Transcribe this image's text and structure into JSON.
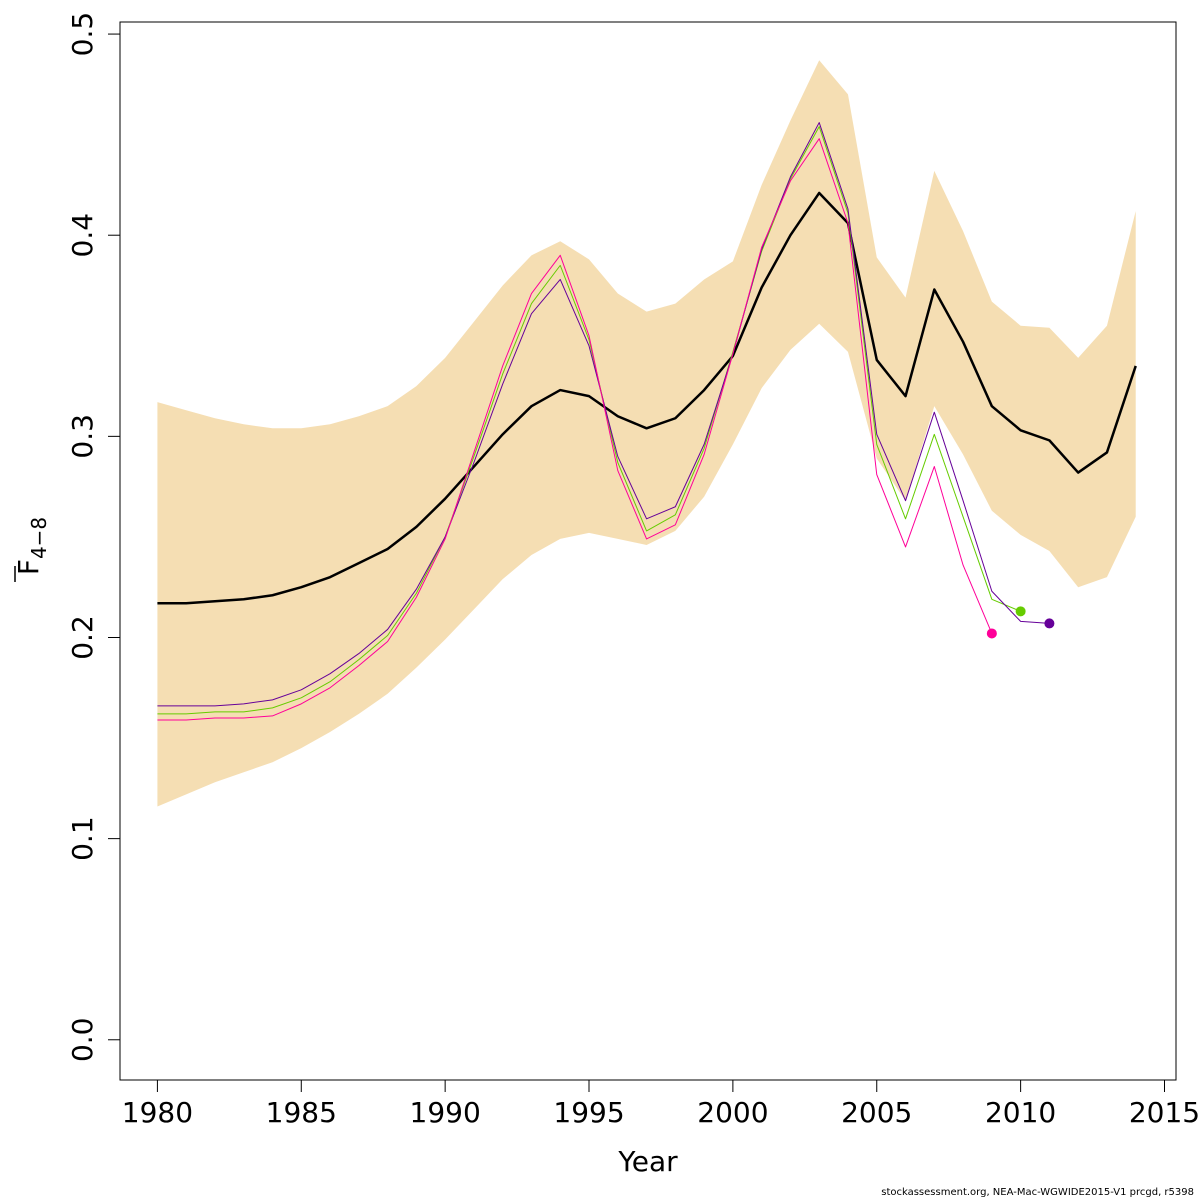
{
  "chart_data": {
    "type": "line",
    "xlabel": "Year",
    "ylabel_main": "F",
    "ylabel_sub": "4−8",
    "xlim": [
      1978.7,
      2015.4
    ],
    "ylim": [
      -0.02,
      0.506
    ],
    "x_ticks": [
      1980,
      1985,
      1990,
      1995,
      2000,
      2005,
      2010,
      2015
    ],
    "y_ticks": [
      0.0,
      0.1,
      0.2,
      0.3,
      0.4,
      0.5
    ],
    "y_tick_labels": [
      "0.0",
      "0.1",
      "0.2",
      "0.3",
      "0.4",
      "0.5"
    ],
    "grid": false,
    "band": {
      "color": "#f5deb3",
      "x": [
        1980,
        1981,
        1982,
        1983,
        1984,
        1985,
        1986,
        1987,
        1988,
        1989,
        1990,
        1991,
        1992,
        1993,
        1994,
        1995,
        1996,
        1997,
        1998,
        1999,
        2000,
        2001,
        2002,
        2003,
        2004,
        2005,
        2006,
        2007,
        2008,
        2009,
        2010,
        2011,
        2012,
        2013,
        2014
      ],
      "upper": [
        0.317,
        0.313,
        0.309,
        0.306,
        0.304,
        0.304,
        0.306,
        0.31,
        0.315,
        0.325,
        0.339,
        0.357,
        0.375,
        0.39,
        0.397,
        0.388,
        0.371,
        0.362,
        0.366,
        0.378,
        0.387,
        0.425,
        0.457,
        0.487,
        0.47,
        0.389,
        0.369,
        0.432,
        0.402,
        0.367,
        0.355,
        0.354,
        0.339,
        0.355,
        0.412
      ],
      "lower": [
        0.116,
        0.122,
        0.128,
        0.133,
        0.138,
        0.145,
        0.153,
        0.162,
        0.172,
        0.185,
        0.199,
        0.214,
        0.229,
        0.241,
        0.249,
        0.252,
        0.249,
        0.246,
        0.253,
        0.27,
        0.296,
        0.324,
        0.343,
        0.356,
        0.342,
        0.289,
        0.268,
        0.315,
        0.291,
        0.263,
        0.251,
        0.243,
        0.225,
        0.23,
        0.26
      ]
    },
    "series": [
      {
        "color": "#000000",
        "width": 2.5,
        "x": [
          1980,
          1981,
          1982,
          1983,
          1984,
          1985,
          1986,
          1987,
          1988,
          1989,
          1990,
          1991,
          1992,
          1993,
          1994,
          1995,
          1996,
          1997,
          1998,
          1999,
          2000,
          2001,
          2002,
          2003,
          2004,
          2005,
          2006,
          2007,
          2008,
          2009,
          2010,
          2011,
          2012,
          2013,
          2014
        ],
        "values": [
          0.217,
          0.217,
          0.218,
          0.219,
          0.221,
          0.225,
          0.23,
          0.237,
          0.244,
          0.255,
          0.269,
          0.285,
          0.301,
          0.315,
          0.323,
          0.32,
          0.31,
          0.304,
          0.309,
          0.323,
          0.34,
          0.374,
          0.4,
          0.421,
          0.406,
          0.338,
          0.32,
          0.373,
          0.347,
          0.315,
          0.303,
          0.298,
          0.282,
          0.292,
          0.335
        ],
        "end_point": false
      },
      {
        "color": "#66cc00",
        "width": 1,
        "x": [
          1980,
          1981,
          1982,
          1983,
          1984,
          1985,
          1986,
          1987,
          1988,
          1989,
          1990,
          1991,
          1992,
          1993,
          1994,
          1995,
          1996,
          1997,
          1998,
          1999,
          2000,
          2001,
          2002,
          2003,
          2004,
          2005,
          2006,
          2007,
          2008,
          2009,
          2010
        ],
        "values": [
          0.162,
          0.162,
          0.163,
          0.163,
          0.165,
          0.17,
          0.178,
          0.189,
          0.201,
          0.222,
          0.25,
          0.29,
          0.331,
          0.366,
          0.385,
          0.348,
          0.287,
          0.253,
          0.261,
          0.294,
          0.342,
          0.392,
          0.428,
          0.454,
          0.411,
          0.296,
          0.259,
          0.301,
          0.26,
          0.219,
          0.213
        ],
        "end_point": true
      },
      {
        "color": "#660099",
        "width": 1,
        "x": [
          1980,
          1981,
          1982,
          1983,
          1984,
          1985,
          1986,
          1987,
          1988,
          1989,
          1990,
          1991,
          1992,
          1993,
          1994,
          1995,
          1996,
          1997,
          1998,
          1999,
          2000,
          2001,
          2002,
          2003,
          2004,
          2005,
          2006,
          2007,
          2008,
          2009,
          2010,
          2011
        ],
        "values": [
          0.166,
          0.166,
          0.166,
          0.167,
          0.169,
          0.174,
          0.182,
          0.192,
          0.204,
          0.224,
          0.25,
          0.287,
          0.326,
          0.361,
          0.378,
          0.345,
          0.29,
          0.259,
          0.265,
          0.296,
          0.341,
          0.393,
          0.429,
          0.456,
          0.413,
          0.301,
          0.268,
          0.312,
          0.268,
          0.223,
          0.208,
          0.207
        ],
        "end_point": true
      },
      {
        "color": "#ff0099",
        "width": 1,
        "x": [
          1980,
          1981,
          1982,
          1983,
          1984,
          1985,
          1986,
          1987,
          1988,
          1989,
          1990,
          1991,
          1992,
          1993,
          1994,
          1995,
          1996,
          1997,
          1998,
          1999,
          2000,
          2001,
          2002,
          2003,
          2004,
          2005,
          2006,
          2007,
          2008,
          2009
        ],
        "values": [
          0.159,
          0.159,
          0.16,
          0.16,
          0.161,
          0.167,
          0.175,
          0.186,
          0.198,
          0.22,
          0.249,
          0.292,
          0.335,
          0.371,
          0.39,
          0.35,
          0.283,
          0.249,
          0.256,
          0.291,
          0.341,
          0.394,
          0.427,
          0.448,
          0.406,
          0.281,
          0.245,
          0.285,
          0.236,
          0.202
        ],
        "end_point": true
      }
    ]
  },
  "footer": {
    "credit": "stockassessment.org, NEA-Mac-WGWIDE2015-V1 prcgd, r5398"
  }
}
